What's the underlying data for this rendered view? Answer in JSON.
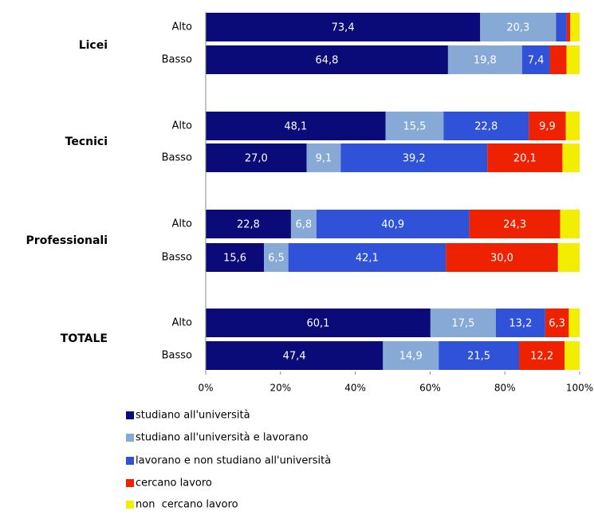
{
  "chart_data": {
    "type": "stacked-barh",
    "groups": [
      "Licei",
      "Tecnici",
      "Professionali",
      "TOTALE"
    ],
    "categories": [
      "Alto",
      "Basso",
      "Alto",
      "Basso",
      "Alto",
      "Basso",
      "Alto",
      "Basso"
    ],
    "xlim": [
      0,
      100
    ],
    "xticks": [
      {
        "value": 0,
        "label": "0%"
      },
      {
        "value": 20,
        "label": "20%"
      },
      {
        "value": 40,
        "label": "40%"
      },
      {
        "value": 60,
        "label": "60%"
      },
      {
        "value": 80,
        "label": "80%"
      },
      {
        "value": 100,
        "label": "100%"
      }
    ],
    "series": [
      {
        "name": "studiano all'università",
        "color": "#0a0a78",
        "values": [
          73.4,
          64.8,
          48.1,
          27.0,
          22.8,
          15.6,
          60.1,
          47.4
        ],
        "value_labels": [
          "73,4",
          "64,8",
          "48,1",
          "27,0",
          "22,8",
          "15,6",
          "60,1",
          "47,4"
        ]
      },
      {
        "name": "studiano all'università e lavorano",
        "color": "#86a9d6",
        "values": [
          20.3,
          19.8,
          15.5,
          9.1,
          6.8,
          6.5,
          17.5,
          14.9
        ],
        "value_labels": [
          "20,3",
          "19,8",
          "15,5",
          "9,1",
          "6,8",
          "6,5",
          "17,5",
          "14,9"
        ]
      },
      {
        "name": "lavorano e non studiano all'università",
        "color": "#2f52d8",
        "values": [
          2.8,
          7.4,
          22.8,
          39.2,
          40.9,
          42.1,
          13.2,
          21.5
        ],
        "value_labels": [
          null,
          "7,4",
          "22,8",
          "39,2",
          "40,9",
          "42,1",
          "13,2",
          "21,5"
        ]
      },
      {
        "name": "cercano lavoro",
        "color": "#ee2200",
        "values": [
          1.0,
          4.5,
          9.9,
          20.1,
          24.3,
          30.0,
          6.3,
          12.2
        ],
        "value_labels": [
          null,
          null,
          "9,9",
          "20,1",
          "24,3",
          "30,0",
          "6,3",
          "12,2"
        ]
      },
      {
        "name": "non  cercano lavoro",
        "color": "#f2ee00",
        "values": [
          2.5,
          3.5,
          3.7,
          4.6,
          5.2,
          5.8,
          2.9,
          4.0
        ],
        "value_labels": [
          null,
          null,
          null,
          null,
          null,
          null,
          null,
          null
        ]
      }
    ]
  }
}
